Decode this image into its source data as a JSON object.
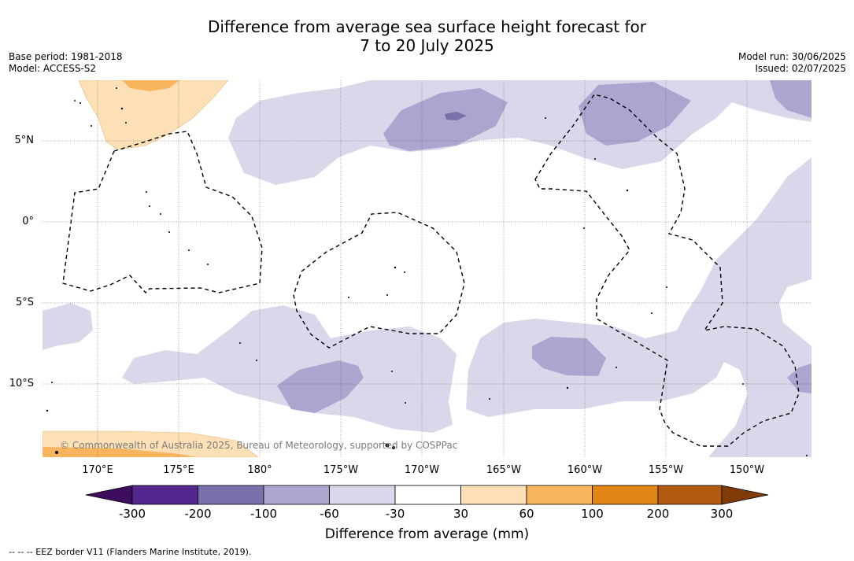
{
  "header": {
    "title_line1": "Difference from average sea surface height forecast for",
    "title_line2": "7 to 20 July 2025",
    "base_period": "Base period: 1981-2018",
    "model": "Model: ACCESS-S2",
    "model_run": "Model run: 30/06/2025",
    "issued": "Issued: 02/07/2025"
  },
  "map": {
    "latitude_labels": [
      "5°N",
      "0°",
      "5°S",
      "10°S"
    ],
    "longitude_labels": [
      "170°E",
      "175°E",
      "180°",
      "175°W",
      "170°W",
      "165°W",
      "160°W",
      "155°W",
      "150°W"
    ],
    "copyright": "© Commonwealth of Australia 2025, Bureau of Meteorology, supported by COSPPac"
  },
  "colorbar": {
    "title": "Difference from average (mm)",
    "tick_labels": [
      "-300",
      "-200",
      "-100",
      "-60",
      "-30",
      "30",
      "60",
      "100",
      "200",
      "300"
    ],
    "colors": [
      "#3f0d5e",
      "#54278f",
      "#7b6fac",
      "#aba6d0",
      "#d8d8ea",
      "#ffffff",
      "#fde0b5",
      "#f9b45e",
      "#e08516",
      "#b25a0f",
      "#7f3b08"
    ]
  },
  "footer": {
    "legend_note": "--  --  -- EEZ border V11 (Flanders Marine Institute, 2019)."
  }
}
